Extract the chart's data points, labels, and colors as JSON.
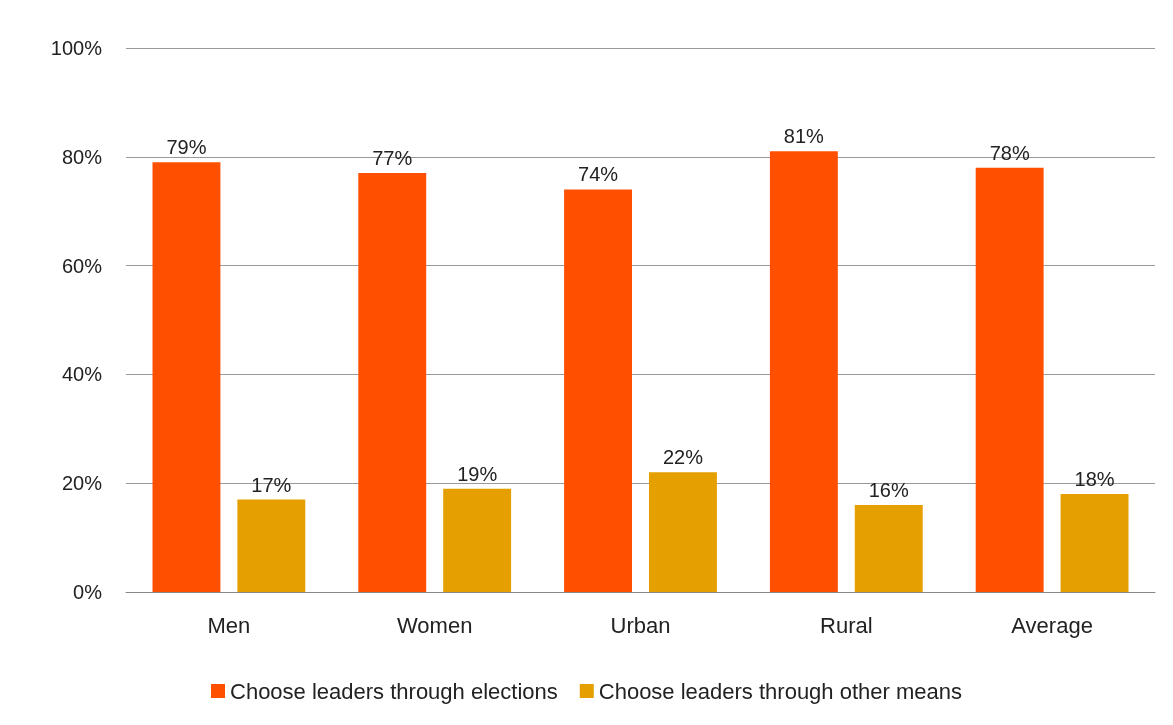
{
  "chart_data": {
    "type": "bar",
    "categories": [
      "Men",
      "Women",
      "Urban",
      "Rural",
      "Average"
    ],
    "series": [
      {
        "name": "Choose leaders through elections",
        "color": "#ff5000",
        "values": [
          79,
          77,
          74,
          81,
          78
        ],
        "value_labels": [
          "79%",
          "77%",
          "74%",
          "81%",
          "78%"
        ]
      },
      {
        "name": "Choose leaders through other means",
        "color": "#e69f00",
        "values": [
          17,
          19,
          22,
          16,
          18
        ],
        "value_labels": [
          "17%",
          "19%",
          "22%",
          "16%",
          "18%"
        ]
      }
    ],
    "ylim": [
      0,
      100
    ],
    "yticks": [
      {
        "value": 0,
        "label": "0%"
      },
      {
        "value": 20,
        "label": "20%"
      },
      {
        "value": 40,
        "label": "40%"
      },
      {
        "value": 60,
        "label": "60%"
      },
      {
        "value": 80,
        "label": "80%"
      },
      {
        "value": 100,
        "label": "100%"
      }
    ],
    "grid": "y",
    "legend": "bottom"
  }
}
